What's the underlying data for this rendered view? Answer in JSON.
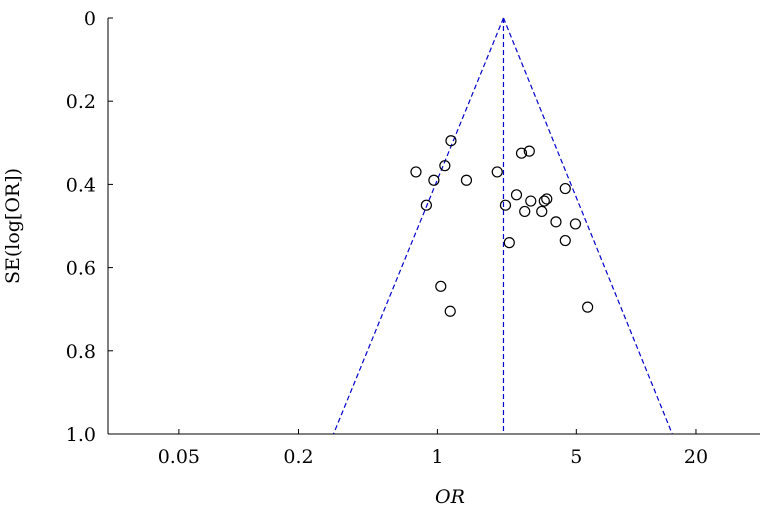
{
  "chart_data": {
    "type": "scatter",
    "title": "",
    "xlabel": "OR",
    "ylabel": "SE(log[OR])",
    "x_scale": "log",
    "x_ticks": [
      0.05,
      0.2,
      1,
      5,
      20
    ],
    "x_tick_labels": [
      "0.05",
      "0.2",
      "1",
      "5",
      "20"
    ],
    "xlim": [
      0.022,
      42
    ],
    "y_ticks": [
      0,
      0.2,
      0.4,
      0.6,
      0.8,
      1.0
    ],
    "y_tick_labels": [
      "0",
      "0.2",
      "0.4",
      "0.6",
      "0.8",
      "1.0"
    ],
    "ylim": [
      0,
      1.0
    ],
    "y_reversed": true,
    "grid": false,
    "pooled_or": 2.15,
    "funnel_limits_at_se_1": [
      0.3,
      15.2
    ],
    "points": [
      {
        "or": 0.78,
        "se": 0.37
      },
      {
        "or": 0.88,
        "se": 0.45
      },
      {
        "or": 0.96,
        "se": 0.39
      },
      {
        "or": 1.04,
        "se": 0.645
      },
      {
        "or": 1.09,
        "se": 0.355
      },
      {
        "or": 1.17,
        "se": 0.295
      },
      {
        "or": 1.16,
        "se": 0.705
      },
      {
        "or": 1.4,
        "se": 0.39
      },
      {
        "or": 2.0,
        "se": 0.37
      },
      {
        "or": 2.2,
        "se": 0.45
      },
      {
        "or": 2.3,
        "se": 0.54
      },
      {
        "or": 2.5,
        "se": 0.425
      },
      {
        "or": 2.65,
        "se": 0.325
      },
      {
        "or": 2.75,
        "se": 0.465
      },
      {
        "or": 2.9,
        "se": 0.32
      },
      {
        "or": 2.95,
        "se": 0.44
      },
      {
        "or": 3.35,
        "se": 0.465
      },
      {
        "or": 3.45,
        "se": 0.44
      },
      {
        "or": 3.55,
        "se": 0.435
      },
      {
        "or": 3.95,
        "se": 0.49
      },
      {
        "or": 4.4,
        "se": 0.41
      },
      {
        "or": 4.4,
        "se": 0.535
      },
      {
        "or": 4.95,
        "se": 0.495
      },
      {
        "or": 5.7,
        "se": 0.695
      }
    ],
    "colors": {
      "funnel": "#0000cc",
      "axis": "#000000",
      "markers": "#000000"
    }
  }
}
